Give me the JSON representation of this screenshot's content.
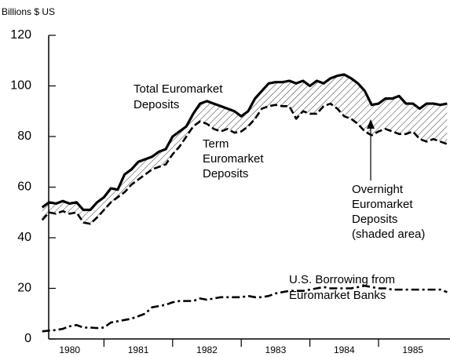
{
  "chart_data": {
    "type": "line",
    "y_axis_label": "Billions $ US",
    "ylim": [
      0,
      120
    ],
    "yticks": [
      0,
      20,
      40,
      60,
      80,
      100,
      120
    ],
    "xlim": [
      1980,
      1986
    ],
    "xticks": [
      {
        "value": 1980.5,
        "label": "1980"
      },
      {
        "value": 1981.5,
        "label": "1981"
      },
      {
        "value": 1982.5,
        "label": "1982"
      },
      {
        "value": 1983.5,
        "label": "1983"
      },
      {
        "value": 1984.5,
        "label": "1984"
      },
      {
        "value": 1985.5,
        "label": "1985"
      }
    ],
    "xminor": [
      1981,
      1982,
      1983,
      1984,
      1985
    ],
    "grid": false,
    "shaded_between": [
      0,
      1
    ],
    "x": [
      1980.1,
      1980.2,
      1980.3,
      1980.4,
      1980.5,
      1980.6,
      1980.7,
      1980.8,
      1980.9,
      1981.0,
      1981.1,
      1981.2,
      1981.3,
      1981.4,
      1981.5,
      1981.6,
      1981.7,
      1981.8,
      1981.9,
      1982.0,
      1982.1,
      1982.2,
      1982.3,
      1982.4,
      1982.5,
      1982.6,
      1982.7,
      1982.8,
      1982.9,
      1983.0,
      1983.1,
      1983.2,
      1983.3,
      1983.4,
      1983.5,
      1983.6,
      1983.7,
      1983.8,
      1983.9,
      1984.0,
      1984.1,
      1984.2,
      1984.3,
      1984.4,
      1984.5,
      1984.6,
      1984.7,
      1984.8,
      1984.9,
      1985.0,
      1985.1,
      1985.2,
      1985.3,
      1985.4,
      1985.5,
      1985.6,
      1985.7,
      1985.8,
      1985.9,
      1986.0
    ],
    "series": [
      {
        "name": "Total Euromarket Deposits",
        "color": "#000000",
        "style": "solid",
        "values": [
          52,
          54,
          53.5,
          54.5,
          53.5,
          54,
          51,
          51,
          54,
          56,
          59.5,
          59,
          65,
          67,
          70,
          71,
          72,
          74,
          75,
          80,
          82,
          84,
          89,
          93,
          94,
          93,
          92,
          91,
          90,
          88,
          90,
          95,
          98,
          101,
          101.5,
          101.5,
          102,
          101,
          102,
          100,
          102,
          101,
          103,
          104,
          104.5,
          103,
          101,
          98,
          92.5,
          93,
          95,
          95,
          96,
          93,
          93,
          91,
          93,
          93,
          92.5,
          93
        ]
      },
      {
        "name": "Term Euromarket Deposits",
        "color": "#000000",
        "style": "dashed",
        "values": [
          47,
          50,
          49.5,
          50.5,
          49.5,
          50,
          46,
          45.5,
          48,
          51,
          54,
          56,
          58,
          61,
          63,
          65,
          67,
          68,
          69,
          73,
          76,
          80,
          84,
          86,
          85,
          83,
          82,
          83,
          81.5,
          82,
          84,
          87,
          91,
          92,
          92.5,
          92,
          92,
          87,
          90,
          89,
          89,
          92,
          93,
          91,
          88,
          87,
          85,
          82,
          80.5,
          82,
          83,
          82,
          81,
          81,
          82,
          79,
          78,
          79,
          78,
          77
        ]
      },
      {
        "name": "U.S. Borrowing from Euromarket Banks",
        "color": "#000000",
        "style": "dashdot",
        "values": [
          3,
          3.3,
          3.5,
          4,
          5,
          5.5,
          4.5,
          4.5,
          4.3,
          4.5,
          6.5,
          7,
          7.5,
          8,
          9,
          10,
          12.5,
          13,
          13.5,
          14.5,
          15,
          15,
          15,
          16,
          15.5,
          16,
          16.5,
          16.5,
          16.5,
          16.5,
          17,
          16.5,
          16.5,
          17,
          18,
          18.5,
          19,
          19,
          19,
          19.5,
          20,
          20.5,
          20,
          20,
          20,
          20,
          20.5,
          21,
          20.5,
          20,
          20,
          19.5,
          19.5,
          19.5,
          19.5,
          19.5,
          19.5,
          19.5,
          19.5,
          18.5
        ]
      }
    ],
    "annotations": [
      {
        "lines": [
          "Total Euromarket",
          "Deposits"
        ]
      },
      {
        "lines": [
          "Term",
          "Euromarket",
          "Deposits"
        ]
      },
      {
        "lines": [
          "Overnight",
          "Euromarket",
          "Deposits",
          "(shaded area)"
        ]
      },
      {
        "lines": [
          "U.S. Borrowing from",
          "Euromarket Banks"
        ]
      }
    ]
  }
}
